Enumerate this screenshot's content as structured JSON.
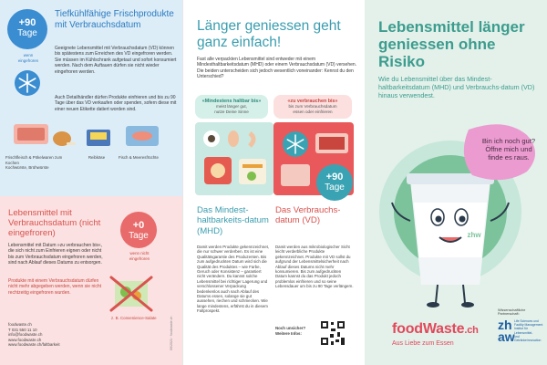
{
  "frozen": {
    "badge_value": "+90",
    "badge_unit": "Tage",
    "badge_caption": "wenn\neingefroren",
    "heading": "Tiefkühlfähige Frischprodukte mit Verbrauchsdatum",
    "body1": "Geeignete Lebensmittel mit Verbrauchsdatum (VD) können bis spätestens zum Erreichen des VD eingefroren werden. Sie müssen im Kühlschrank aufgetaut und sofort konsumiert werden. Nach dem Auftauen dürfen sie nicht wieder eingefroren werden.",
    "body2": "Auch Detailhändler dürfen Produkte einfrieren und bis zu 90 Tage über das VD verkaufen oder spenden, sofern diese mit einer neuen Etikette datiert worden sind.",
    "items": [
      {
        "label": "Frischfleisch & Pökelwaren zum Kochen\nKochwürste, Brühwürste"
      },
      {
        "label": "Reibkäse"
      },
      {
        "label": "Fisch & Meeresfrüchte"
      }
    ]
  },
  "notfrozen": {
    "heading": "Lebensmittel mit Verbrauchsdatum (nicht eingefroren)",
    "badge_value": "+0",
    "badge_unit": "Tage",
    "badge_caption": "wenn nicht\neingefroren",
    "body1": "Lebensmittel mit Datum »zu verbrauchen bis«, die sich nicht zum Einfrieren eignen oder nicht bis zum Verbrauchsdatum eingefroren werden, sind nach Ablauf dieses Datums zu entsorgen.",
    "body2": "Produkte mit einem Verbrauchsdatum dürfen nicht mehr abgegeben werden, wenn sie nicht rechtzeitig eingefroren wurden.",
    "item_label": "z. B. Convenience-Salate",
    "contact": "foodwaste.ch\nT 031 550 11 10\ninfo@foodwaste.ch\nwww.foodwaste.ch\nwww.foodwaste.ch/faltbarkeit",
    "print_note": "09/2021 · foodwaste.ch"
  },
  "middle": {
    "title": "Länger geniessen geht ganz einfach!",
    "intro": "Fast alle verpackten Lebensmittel sind entweder mit einem Mindesthaltbarkeitsdatum (MHD) oder einem Verbrauchsdatum (VD) versehen. Die beiden unterscheiden sich jedoch wesentlich voneinander: Kennst du den Unterschied?",
    "bubble_left_title": "«Mindestens haltbar bis»",
    "bubble_left_sub": "meist länger gut,\nnutze Deine Sinne",
    "bubble_right_title": "«zu verbrauchen bis»",
    "bubble_right_sub": "bis zum Verbrauchsdatum\nessen oder einfrieren",
    "badge_value": "+90",
    "badge_unit": "Tage",
    "mhd_heading": "Das Mindest-haltbarkeits-datum (MHD)",
    "mhd_body": "Damit werden Produkte gekennzeichnet, die nur schwer verderben. Es ist eine Qualitätsgarantie des Produzenten. Bis zum aufgedruckten Datum wird sich die Qualität des Produktes – wie Farbe, Geruch oder Konsistenz – garantiert nicht verändern. Du kannst solche Lebensmittel bei richtiger Lagerung und verschlossener Verpackung bedenkenlos auch nach Ablauf des Datums essen, solange sie gut aussehen, riechen und schmecken. Wie lange mindestens, erfährst du in diesem Faltprospekt.",
    "vd_heading": "Das Verbrauchs-datum (VD)",
    "vd_body": "Damit werden aus mikrobiologischer Sicht leicht verderbliche Produkte gekennzeichnet. Produkte mit VD sollst du aufgrund der Lebensmittelsicherheit nach Ablauf dieses Datums nicht mehr konsumieren. Bis zum aufgedruckten Datum kannst du das Produkt jedoch problemlos einfrieren und so seine Lebensdauer um bis zu 90 Tage verlängern.",
    "qr_label": "Noch unsicher?\nWeitere Infos:"
  },
  "cover": {
    "title": "Lebensmittel länger geniessen ohne Risiko",
    "subtitle": "Wie du Lebensmittel über das Mindest-haltbarkeitsdatum (MHD) und Verbrauchs-datum (VD) hinaus verwendest.",
    "speech": "Bin ich noch gut?\nÖffne mich und\nfinde es raus.",
    "cup_brand": "zhw",
    "logo_main": "foodWaste",
    "logo_suffix": ".ch",
    "logo_tagline": "Aus Liebe zum Essen",
    "zhaw_name": "zh\naw",
    "zhaw_caption": "Wissenschaftliche Partnerschaft:",
    "zhaw_dept": "Life Sciences und\nFacility Management\nInstitut für Lebensmittel-\nund Getränkeinnovation"
  },
  "colors": {
    "blue": "#3a8dd1",
    "teal": "#3a9daf",
    "red": "#e86a6a",
    "brand_pink": "#e2485b",
    "cover_green": "#3c9c8e"
  }
}
